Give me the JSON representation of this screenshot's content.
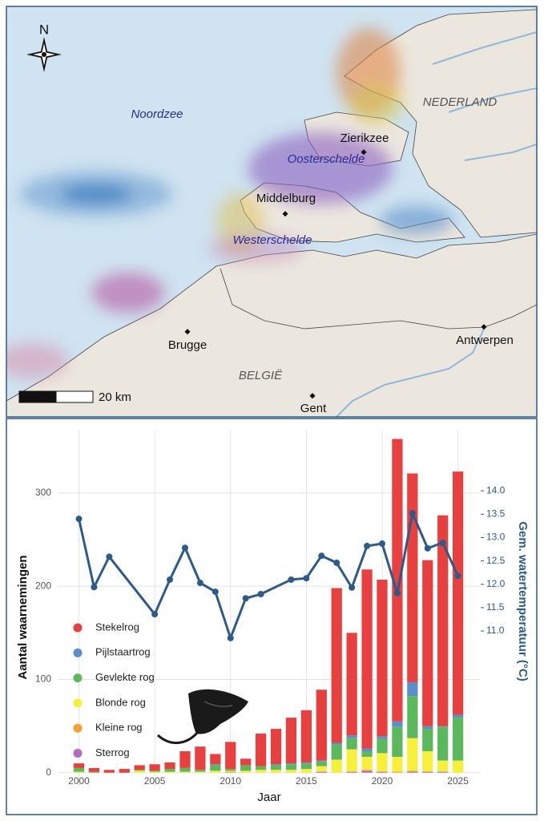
{
  "map": {
    "north": "N",
    "sea": "Noordzee",
    "country_nl": "NEDERLAND",
    "country_be": "BELGIË",
    "water_oost": "Oosterschelde",
    "water_west": "Westerschelde",
    "places": [
      "Zierikzee",
      "Middelburg",
      "Brugge",
      "Antwerpen",
      "Gent"
    ],
    "scale": "20 km"
  },
  "chart_data": {
    "type": "bar",
    "stacked": true,
    "x": [
      2000,
      2001,
      2002,
      2003,
      2004,
      2005,
      2006,
      2007,
      2008,
      2009,
      2010,
      2011,
      2012,
      2013,
      2014,
      2015,
      2016,
      2017,
      2018,
      2019,
      2020,
      2021,
      2022,
      2023,
      2024,
      2025
    ],
    "xlim": [
      1998.6,
      2026.5
    ],
    "xticks": [
      2000,
      2005,
      2010,
      2015,
      2020,
      2025
    ],
    "ylim": [
      -14,
      367
    ],
    "yticks": [
      0,
      100,
      200,
      300
    ],
    "y2lim": [
      7.69,
      15.29
    ],
    "y2ticks": [
      {
        "value": 11,
        "label": "11.0"
      },
      11.5,
      {
        "value": 12,
        "label": "12.0"
      },
      12.5,
      {
        "value": 13,
        "label": "13.0"
      },
      13.5,
      {
        "value": 14,
        "label": "14.0"
      }
    ],
    "xlabel": "Jaar",
    "ylabel": "Aantal waarnemingen",
    "y2label": "Gem. watertemperatuur (°C)",
    "grid": true,
    "legend": "left",
    "series": [
      {
        "name": "Sterrog",
        "color": "#b36bc2",
        "values": [
          0,
          0,
          0,
          0,
          0,
          0,
          0,
          0,
          0,
          0,
          0,
          0,
          0,
          0,
          0,
          0,
          1,
          0,
          1,
          2,
          1,
          0,
          1,
          1,
          1,
          0
        ]
      },
      {
        "name": "Kleine rog",
        "color": "#f5a033",
        "values": [
          0,
          0,
          0,
          0,
          0,
          0,
          0,
          0,
          0,
          0,
          1,
          0,
          0,
          0,
          0,
          0,
          0,
          0,
          0,
          1,
          0,
          1,
          1,
          0,
          0,
          0
        ]
      },
      {
        "name": "Blonde rog",
        "color": "#f7f03a",
        "values": [
          1,
          0,
          0,
          0,
          2,
          1,
          1,
          1,
          1,
          2,
          1,
          2,
          3,
          3,
          3,
          4,
          6,
          14,
          24,
          14,
          20,
          16,
          35,
          22,
          12,
          13
        ]
      },
      {
        "name": "Gevlekte rog",
        "color": "#5cb85c",
        "values": [
          4,
          1,
          0,
          0,
          1,
          1,
          3,
          4,
          2,
          6,
          2,
          6,
          4,
          5,
          6,
          6,
          5,
          16,
          12,
          6,
          15,
          32,
          45,
          24,
          36,
          46
        ]
      },
      {
        "name": "Pijlstaartrog",
        "color": "#5b8fc9",
        "values": [
          0,
          0,
          0,
          0,
          0,
          0,
          0,
          0,
          0,
          1,
          0,
          0,
          0,
          1,
          1,
          1,
          1,
          2,
          3,
          3,
          3,
          6,
          15,
          3,
          1,
          3
        ]
      },
      {
        "name": "Stekelrog",
        "color": "#e8403e",
        "values": [
          5,
          4,
          3,
          4,
          5,
          7,
          7,
          18,
          25,
          11,
          29,
          7,
          35,
          38,
          49,
          56,
          76,
          166,
          110,
          192,
          168,
          303,
          224,
          178,
          226,
          261
        ]
      }
    ],
    "line": {
      "type": "line",
      "axis": "y2",
      "color": "#2c5a8a",
      "x": [
        2000,
        2001,
        2002,
        2005,
        2006,
        2007,
        2008,
        2009,
        2010,
        2011,
        2012,
        2014,
        2015,
        2016,
        2017,
        2018,
        2019,
        2020,
        2021,
        2022,
        2023,
        2024,
        2025
      ],
      "values": [
        13.4,
        11.94,
        12.59,
        11.36,
        12.1,
        12.78,
        12.03,
        11.84,
        10.85,
        11.7,
        11.79,
        12.1,
        12.13,
        12.61,
        12.46,
        11.93,
        12.82,
        12.87,
        11.81,
        13.52,
        12.77,
        12.89,
        12.18
      ]
    }
  }
}
